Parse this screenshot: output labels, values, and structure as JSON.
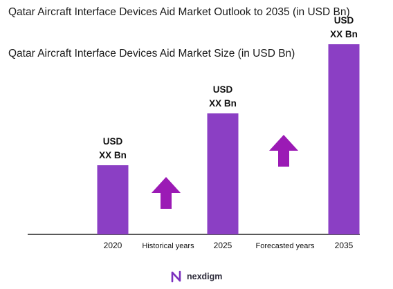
{
  "title": "Qatar Aircraft Interface Devices Aid Market Outlook to 2035 (in USD Bn)",
  "subtitle": "Qatar Aircraft Interface Devices Aid Market Size (in USD Bn)",
  "colors": {
    "bar": "#8b3fc4",
    "arrow": "#9b1ab5",
    "axis": "#222222",
    "logo_accent": "#7b2fbe"
  },
  "chart_data": {
    "type": "bar",
    "categories": [
      "2020",
      "2025",
      "2035"
    ],
    "values": [
      1.0,
      1.75,
      2.75
    ],
    "value_labels": [
      {
        "line1": "USD",
        "line2": "XX Bn"
      },
      {
        "line1": "USD",
        "line2": "XX Bn"
      },
      {
        "line1": "USD",
        "line2": "XX Bn"
      }
    ],
    "ylim": [
      0,
      3
    ],
    "period_labels": [
      "Historical years",
      "Forecasted years"
    ],
    "grid": false,
    "legend": "none"
  },
  "icons": {
    "growth_arrow": "up-arrow-icon",
    "logo": "nexdigm-logo-icon"
  },
  "logo_text": "nexdigm"
}
